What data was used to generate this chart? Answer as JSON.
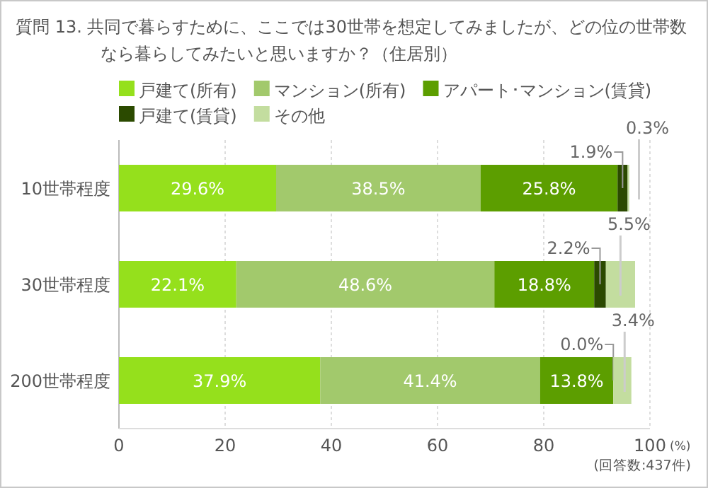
{
  "chart_data": {
    "type": "bar",
    "orientation": "horizontal",
    "stacked": true,
    "title": "質問 13. 共同で暮らすために、ここでは30世帯を想定してみましたが、どの位の世帯数なら暮らしてみたいと思いますか？（住居別）",
    "categories": [
      "10世帯程度",
      "30世帯程度",
      "200世帯程度"
    ],
    "series": [
      {
        "name": "戸建て(所有)",
        "color": "#95e01c",
        "values": [
          29.6,
          22.1,
          37.9
        ],
        "value_labels": [
          "29.6%",
          "22.1%",
          "37.9%"
        ]
      },
      {
        "name": "マンション(所有)",
        "color": "#a2c96c",
        "values": [
          38.5,
          48.6,
          41.4
        ],
        "value_labels": [
          "38.5%",
          "48.6%",
          "41.4%"
        ]
      },
      {
        "name": "アパート･マンション(賃貸)",
        "color": "#5c9e00",
        "values": [
          25.8,
          18.8,
          13.8
        ],
        "value_labels": [
          "25.8%",
          "18.8%",
          "13.8%"
        ]
      },
      {
        "name": "戸建て(賃貸)",
        "color": "#2b4a00",
        "values": [
          1.9,
          2.2,
          0.0
        ],
        "value_labels": [
          "1.9%",
          "2.2%",
          "0.0%"
        ]
      },
      {
        "name": "その他",
        "color": "#c3dd9f",
        "values": [
          0.3,
          5.5,
          3.4
        ],
        "value_labels": [
          "0.3%",
          "5.5%",
          "3.4%"
        ]
      }
    ],
    "xlim": [
      0,
      100
    ],
    "xticks": [
      0,
      20,
      40,
      60,
      80,
      100
    ],
    "xlabel": "(%)",
    "grid": "x",
    "legend": "top",
    "annotations": [
      "(回答数:437件)"
    ]
  }
}
